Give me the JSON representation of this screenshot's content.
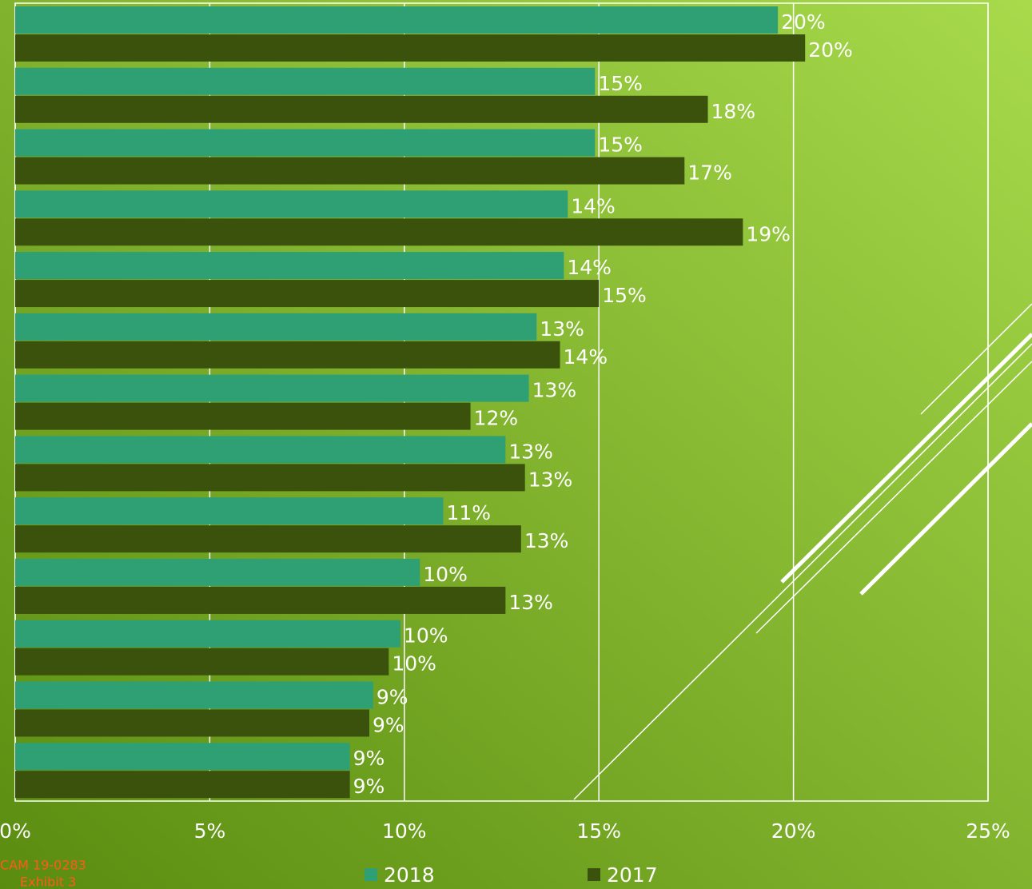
{
  "chart_data": {
    "type": "bar",
    "orientation": "horizontal",
    "categories": [
      null,
      null,
      null,
      null,
      null,
      null,
      null,
      null,
      null,
      null,
      null,
      null,
      null
    ],
    "series": [
      {
        "name": "2018",
        "color": "#2fa074",
        "values": [
          19.6,
          14.9,
          14.9,
          14.2,
          14.1,
          13.4,
          13.2,
          12.6,
          11.0,
          10.4,
          9.9,
          9.2,
          8.6
        ],
        "value_labels": [
          "20%",
          "15%",
          "15%",
          "14%",
          "14%",
          "13%",
          "13%",
          "13%",
          "11%",
          "10%",
          "10%",
          "9%",
          "9%"
        ]
      },
      {
        "name": "2017",
        "color": "#3a520c",
        "values": [
          20.3,
          17.8,
          17.2,
          18.7,
          15.0,
          14.0,
          11.7,
          13.1,
          13.0,
          12.6,
          9.6,
          9.1,
          8.6
        ],
        "value_labels": [
          "20%",
          "18%",
          "17%",
          "19%",
          "15%",
          "14%",
          "12%",
          "13%",
          "13%",
          "13%",
          "10%",
          "9%",
          "9%"
        ]
      }
    ],
    "xlim": [
      0,
      25
    ],
    "xticks": [
      {
        "value": 0,
        "label": "0%"
      },
      {
        "value": 5,
        "label": "5%"
      },
      {
        "value": 10,
        "label": "10%"
      },
      {
        "value": 15,
        "label": "15%"
      },
      {
        "value": 20,
        "label": "20%"
      },
      {
        "value": 25,
        "label": "25%"
      }
    ],
    "grid": true,
    "legend": "bottom",
    "footnotes": [
      "CAM 19-0283",
      "Exhibit 3"
    ]
  }
}
